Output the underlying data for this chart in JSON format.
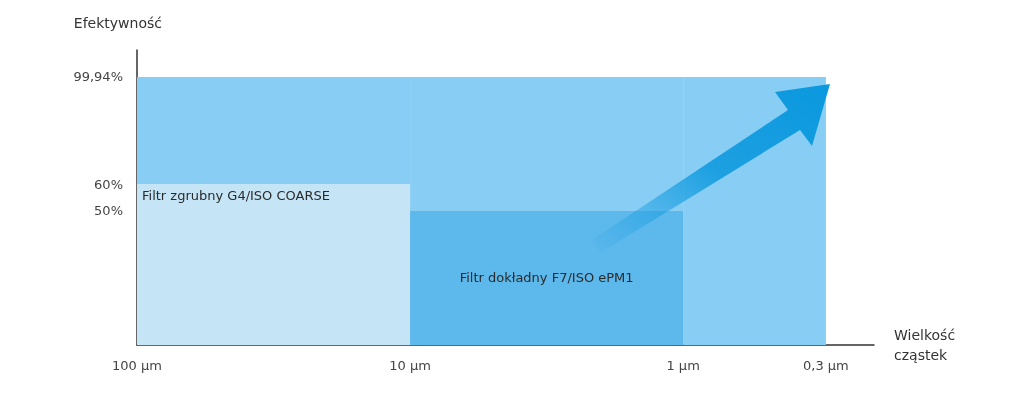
{
  "chart_data": {
    "type": "histogram",
    "xlabel": "Wielkość\ncząstek",
    "ylabel": "Efektywność",
    "log": "x",
    "bins": [
      100,
      10,
      1,
      0.3
    ],
    "series": [
      {
        "values": [
          99.94,
          99.94,
          99.94
        ],
        "color": "#87cdf4"
      },
      {
        "name": "Filtr dokładny F7/ISO ePM1",
        "values": [
          null,
          50,
          null
        ],
        "color": "#5db8ec"
      },
      {
        "name": "Filtr zgrubny G4/ISO COARSE",
        "values": [
          60,
          null,
          null
        ],
        "color": "#e0f0f8"
      }
    ],
    "xlim": [
      100,
      0.2
    ],
    "xticks": [
      {
        "value": 100,
        "label": "100 µm"
      },
      {
        "value": 10,
        "label": "10 µm"
      },
      {
        "value": 1,
        "label": "1 µm"
      },
      {
        "value": 0.3,
        "label": "0,3 µm"
      }
    ],
    "ylim": [
      0,
      110
    ],
    "yticks": [
      {
        "value": 50,
        "label": "50%"
      },
      {
        "value": 60,
        "label": "60%"
      },
      {
        "value": 99.94,
        "label": "99,94%"
      }
    ],
    "grid": false,
    "legend": false
  }
}
